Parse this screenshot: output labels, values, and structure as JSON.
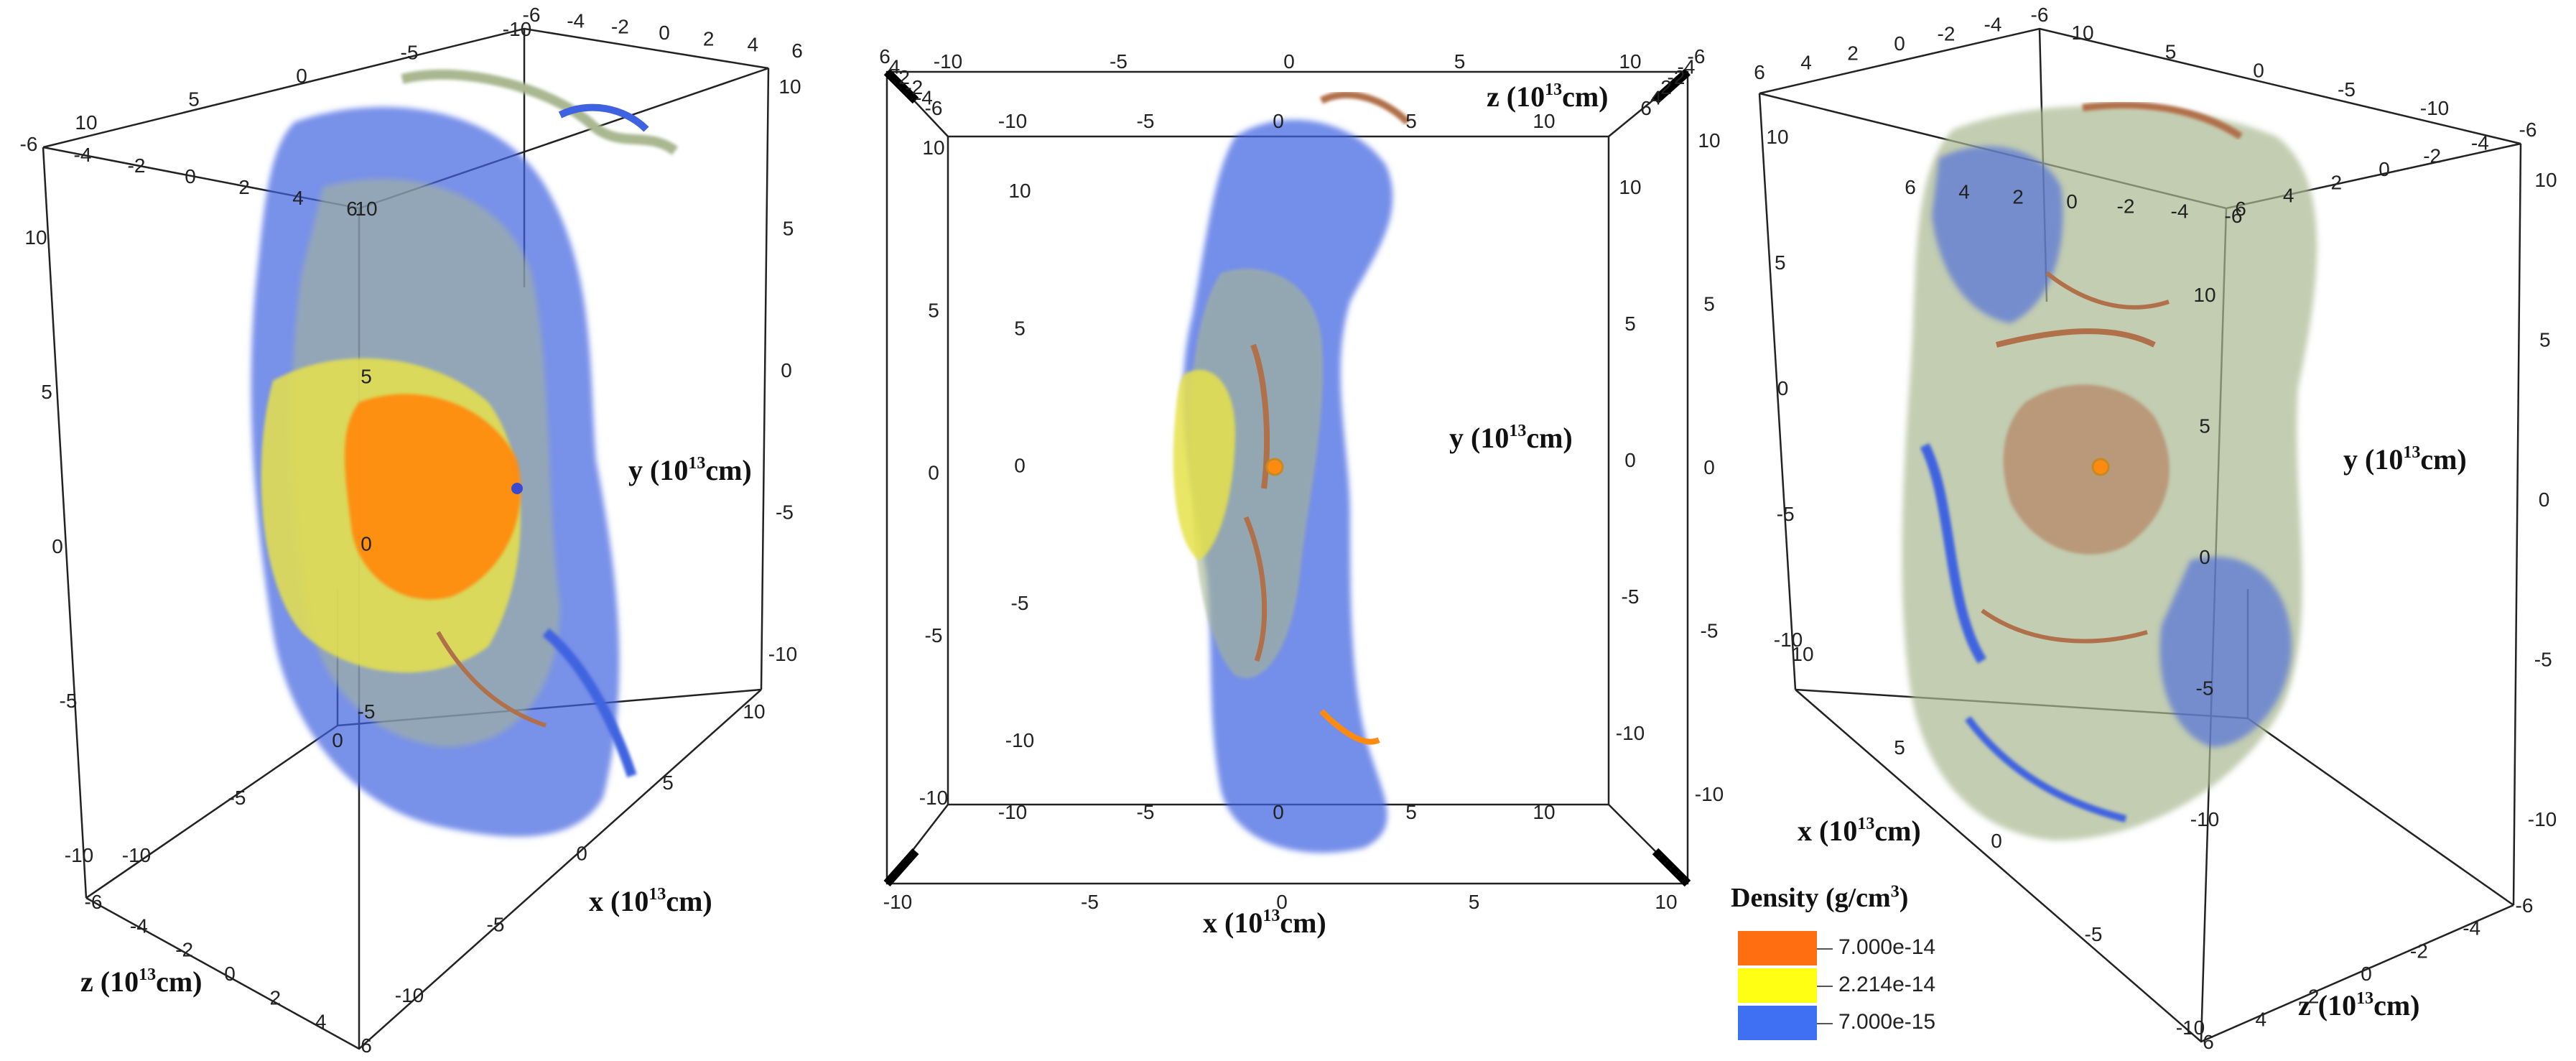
{
  "panels": [
    {
      "id": "left",
      "axis_labels": {
        "y": "y (10",
        "x": "x (10",
        "z": "z (10",
        "exp": "13",
        "unit": "cm)"
      },
      "top_front_ticks": [
        "-6",
        "-4",
        "-2",
        "0",
        "2",
        "4",
        "6"
      ],
      "top_back_ticks": [
        "10",
        "5",
        "0",
        "-5",
        "-10"
      ],
      "right_ticks_top": [
        "-6",
        "-4",
        "-2",
        "0",
        "2",
        "4",
        "6"
      ],
      "right_vertical": [
        "10",
        "5",
        "0",
        "-5",
        "-10"
      ],
      "left_vertical": [
        "10",
        "5",
        "0",
        "-5",
        "-10"
      ],
      "inner_vertical": [
        "10",
        "5",
        "0",
        "-5"
      ],
      "bottom_x": [
        "10",
        "5",
        "0",
        "-5",
        "-10"
      ],
      "bottom_z": [
        "-6",
        "-4",
        "-2",
        "0",
        "2",
        "4",
        "6"
      ],
      "mid_ticks": [
        "0",
        "-5",
        "-10"
      ]
    },
    {
      "id": "center",
      "axis_labels": {
        "y": "y (10",
        "x": "x (10",
        "z": "z (10",
        "exp": "13",
        "unit": "cm)"
      },
      "x_ticks": [
        "-10",
        "-5",
        "0",
        "5",
        "10"
      ],
      "y_ticks": [
        "10",
        "5",
        "0",
        "-5",
        "-10"
      ],
      "inner_x_ticks": [
        "-10",
        "-5",
        "0",
        "5",
        "10"
      ],
      "corner_ticks": [
        "6",
        "4",
        "2",
        "-2",
        "-4",
        "-6"
      ]
    },
    {
      "id": "right",
      "axis_labels": {
        "y": "y (10",
        "x": "x (10",
        "z": "z (10",
        "exp": "13",
        "unit": "cm)"
      },
      "top_ticks": [
        "6",
        "4",
        "2",
        "0",
        "-2",
        "-4",
        "-6"
      ],
      "top_back_ticks": [
        "10",
        "5",
        "0",
        "-5",
        "-10"
      ],
      "right_vertical": [
        "10",
        "5",
        "0",
        "-5",
        "-10"
      ],
      "left_vertical": [
        "10",
        "5",
        "0",
        "-5",
        "-10"
      ],
      "bottom_z": [
        "6",
        "4",
        "2",
        "0",
        "-2",
        "-4",
        "-6"
      ],
      "bottom_x": [
        "10",
        "5",
        "0",
        "-5",
        "-10"
      ],
      "mid_ticks": [
        "10",
        "5",
        "0",
        "-5",
        "-10"
      ]
    }
  ],
  "legend": {
    "title": "Density (g/cm",
    "title_exp": "3",
    "title_close": ")",
    "items": [
      {
        "label": "7.000e-14",
        "color": "#ff6f12"
      },
      {
        "label": "2.214e-14",
        "color": "#ffff14"
      },
      {
        "label": "7.000e-15",
        "color": "#3f6ff2"
      }
    ]
  },
  "colors": {
    "orange": "#ff8a10",
    "yellow": "#e6e24a",
    "olive": "#a9b890",
    "blue": "#3f63e0",
    "brown": "#b0704a"
  }
}
